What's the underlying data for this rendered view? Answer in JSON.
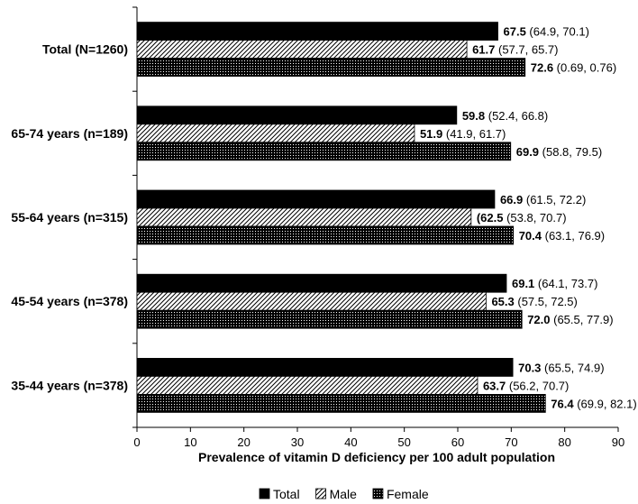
{
  "chart_data": {
    "type": "bar",
    "orientation": "horizontal",
    "categories": [
      "Total (N=1260)",
      "65-74 years (n=189)",
      "55-64 years (n=315)",
      "45-54 years (n=378)",
      "35-44 years (n=378)"
    ],
    "series": [
      {
        "name": "Total",
        "values": [
          67.5,
          59.8,
          66.9,
          69.1,
          70.3
        ],
        "labels": [
          {
            "value": "67.5",
            "ci": "(64.9, 70.1)"
          },
          {
            "value": "59.8",
            "ci": "(52.4, 66.8)"
          },
          {
            "value": "66.9",
            "ci": "(61.5, 72.2)"
          },
          {
            "value": "69.1",
            "ci": "(64.1, 73.7)"
          },
          {
            "value": "70.3",
            "ci": "(65.5, 74.9)"
          }
        ],
        "pattern": "solid"
      },
      {
        "name": "Male",
        "values": [
          61.7,
          51.9,
          62.5,
          65.3,
          63.7
        ],
        "labels": [
          {
            "value": "61.7",
            "ci": "(57.7, 65.7)"
          },
          {
            "value": "51.9",
            "ci": "(41.9, 61.7)"
          },
          {
            "value": "(62.5",
            "ci": "(53.8, 70.7)"
          },
          {
            "value": "65.3",
            "ci": "(57.5, 72.5)"
          },
          {
            "value": "63.7",
            "ci": "(56.2, 70.7)"
          }
        ],
        "pattern": "diagonal-hatch"
      },
      {
        "name": "Female",
        "values": [
          72.6,
          69.9,
          70.4,
          72.0,
          76.4
        ],
        "labels": [
          {
            "value": "72.6",
            "ci": "(0.69, 0.76)"
          },
          {
            "value": "69.9",
            "ci": "(58.8, 79.5)"
          },
          {
            "value": "70.4",
            "ci": "(63.1, 76.9)"
          },
          {
            "value": "72.0",
            "ci": "(65.5, 77.9)"
          },
          {
            "value": "76.4",
            "ci": "(69.9, 82.1)"
          }
        ],
        "pattern": "dotted"
      }
    ],
    "xlabel": "Prevalence of vitamin D deficiency per 100 adult population",
    "ylabel": "",
    "xlim": [
      0,
      90
    ],
    "xticks": [
      0,
      10,
      20,
      30,
      40,
      50,
      60,
      70,
      80,
      90
    ],
    "grid": false,
    "legend_position": "bottom",
    "colors": {
      "bar": "#000000",
      "background": "#ffffff"
    }
  }
}
